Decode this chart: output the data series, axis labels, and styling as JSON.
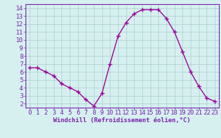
{
  "x": [
    0,
    1,
    2,
    3,
    4,
    5,
    6,
    7,
    8,
    9,
    10,
    11,
    12,
    13,
    14,
    15,
    16,
    17,
    18,
    19,
    20,
    21,
    22,
    23
  ],
  "y": [
    6.5,
    6.5,
    6.0,
    5.5,
    4.5,
    4.0,
    3.5,
    2.5,
    1.7,
    3.3,
    7.0,
    10.5,
    12.2,
    13.3,
    13.8,
    13.8,
    13.8,
    12.7,
    11.0,
    8.5,
    6.0,
    4.2,
    2.7,
    2.3
  ],
  "line_color": "#990099",
  "marker": "+",
  "marker_size": 4,
  "bg_color": "#d6f0f0",
  "grid_color": "#aacccc",
  "xlabel": "Windchill (Refroidissement éolien,°C)",
  "xlim": [
    -0.5,
    23.5
  ],
  "ylim": [
    1.5,
    14.5
  ],
  "yticks": [
    2,
    3,
    4,
    5,
    6,
    7,
    8,
    9,
    10,
    11,
    12,
    13,
    14
  ],
  "xticks": [
    0,
    1,
    2,
    3,
    4,
    5,
    6,
    7,
    8,
    9,
    10,
    11,
    12,
    13,
    14,
    15,
    16,
    17,
    18,
    19,
    20,
    21,
    22,
    23
  ],
  "spine_color": "#7722aa",
  "tick_color": "#7722aa",
  "xlabel_color": "#7722aa",
  "xlabel_fontsize": 6.5,
  "tick_fontsize": 6.5,
  "linewidth": 1.0,
  "markeredgewidth": 1.0
}
